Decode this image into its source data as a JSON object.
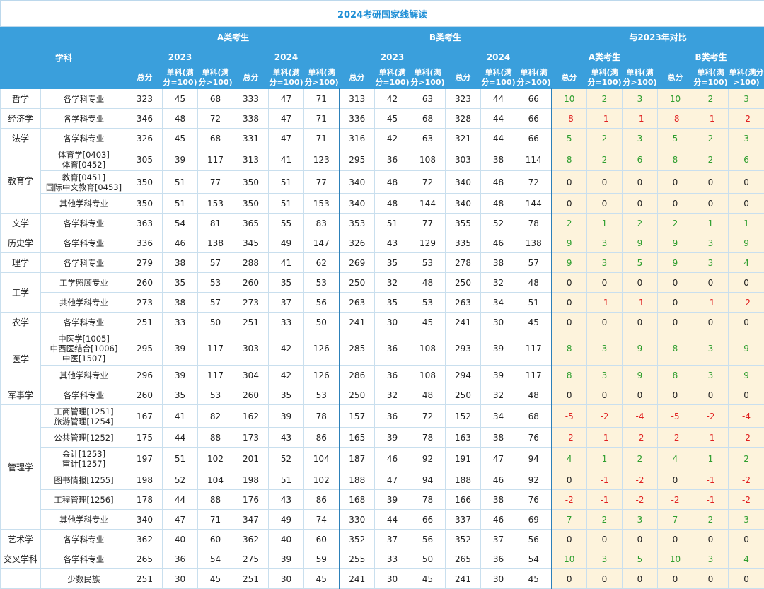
{
  "title": "2024考研国家线解读",
  "header": {
    "subject": "学科",
    "groupA": "A类考生",
    "groupB": "B类考生",
    "compare": "与2023年对比",
    "y2023": "2023",
    "y2024": "2024",
    "cmpA": "A类考生",
    "cmpB": "B类考生",
    "total": "总分",
    "s100": "单科(满分=100)",
    "sgt100": "单科(满分>100)"
  },
  "rows": [
    {
      "subject": "哲学",
      "span": 1,
      "major": "各学科专业",
      "v": [
        "323",
        "45",
        "68",
        "333",
        "47",
        "71",
        "313",
        "42",
        "63",
        "323",
        "44",
        "66"
      ],
      "c": [
        "10",
        "2",
        "3",
        "10",
        "2",
        "3"
      ]
    },
    {
      "subject": "经济学",
      "span": 1,
      "major": "各学科专业",
      "v": [
        "346",
        "48",
        "72",
        "338",
        "47",
        "71",
        "336",
        "45",
        "68",
        "328",
        "44",
        "66"
      ],
      "c": [
        "-8",
        "-1",
        "-1",
        "-8",
        "-1",
        "-2"
      ]
    },
    {
      "subject": "法学",
      "span": 1,
      "major": "各学科专业",
      "v": [
        "326",
        "45",
        "68",
        "331",
        "47",
        "71",
        "316",
        "42",
        "63",
        "321",
        "44",
        "66"
      ],
      "c": [
        "5",
        "2",
        "3",
        "5",
        "2",
        "3"
      ]
    },
    {
      "subject": "教育学",
      "span": 3,
      "major": "体育学[0403]\n体育[0452]",
      "v": [
        "305",
        "39",
        "117",
        "313",
        "41",
        "123",
        "295",
        "36",
        "108",
        "303",
        "38",
        "114"
      ],
      "c": [
        "8",
        "2",
        "6",
        "8",
        "2",
        "6"
      ]
    },
    {
      "major": "教育[0451]\n国际中文教育[0453]",
      "v": [
        "350",
        "51",
        "77",
        "350",
        "51",
        "77",
        "340",
        "48",
        "72",
        "340",
        "48",
        "72"
      ],
      "c": [
        "0",
        "0",
        "0",
        "0",
        "0",
        "0"
      ]
    },
    {
      "major": "其他学科专业",
      "v": [
        "350",
        "51",
        "153",
        "350",
        "51",
        "153",
        "340",
        "48",
        "144",
        "340",
        "48",
        "144"
      ],
      "c": [
        "0",
        "0",
        "0",
        "0",
        "0",
        "0"
      ]
    },
    {
      "subject": "文学",
      "span": 1,
      "major": "各学科专业",
      "v": [
        "363",
        "54",
        "81",
        "365",
        "55",
        "83",
        "353",
        "51",
        "77",
        "355",
        "52",
        "78"
      ],
      "c": [
        "2",
        "1",
        "2",
        "2",
        "1",
        "1"
      ]
    },
    {
      "subject": "历史学",
      "span": 1,
      "major": "各学科专业",
      "v": [
        "336",
        "46",
        "138",
        "345",
        "49",
        "147",
        "326",
        "43",
        "129",
        "335",
        "46",
        "138"
      ],
      "c": [
        "9",
        "3",
        "9",
        "9",
        "3",
        "9"
      ]
    },
    {
      "subject": "理学",
      "span": 1,
      "major": "各学科专业",
      "v": [
        "279",
        "38",
        "57",
        "288",
        "41",
        "62",
        "269",
        "35",
        "53",
        "278",
        "38",
        "57"
      ],
      "c": [
        "9",
        "3",
        "5",
        "9",
        "3",
        "4"
      ]
    },
    {
      "subject": "工学",
      "span": 2,
      "major": "工学照顾专业",
      "v": [
        "260",
        "35",
        "53",
        "260",
        "35",
        "53",
        "250",
        "32",
        "48",
        "250",
        "32",
        "48"
      ],
      "c": [
        "0",
        "0",
        "0",
        "0",
        "0",
        "0"
      ]
    },
    {
      "major": "共他学科专业",
      "v": [
        "273",
        "38",
        "57",
        "273",
        "37",
        "56",
        "263",
        "35",
        "53",
        "263",
        "34",
        "51"
      ],
      "c": [
        "0",
        "-1",
        "-1",
        "0",
        "-1",
        "-2"
      ]
    },
    {
      "subject": "农学",
      "span": 1,
      "major": "各学科专业",
      "v": [
        "251",
        "33",
        "50",
        "251",
        "33",
        "50",
        "241",
        "30",
        "45",
        "241",
        "30",
        "45"
      ],
      "c": [
        "0",
        "0",
        "0",
        "0",
        "0",
        "0"
      ]
    },
    {
      "subject": "医学",
      "span": 2,
      "major": "中医学[1005]\n中西医结合[1006]\n中医[1507]",
      "v": [
        "295",
        "39",
        "117",
        "303",
        "42",
        "126",
        "285",
        "36",
        "108",
        "293",
        "39",
        "117"
      ],
      "c": [
        "8",
        "3",
        "9",
        "8",
        "3",
        "9"
      ]
    },
    {
      "major": "其他学科专业",
      "v": [
        "296",
        "39",
        "117",
        "304",
        "42",
        "126",
        "286",
        "36",
        "108",
        "294",
        "39",
        "117"
      ],
      "c": [
        "8",
        "3",
        "9",
        "8",
        "3",
        "9"
      ]
    },
    {
      "subject": "军事学",
      "span": 1,
      "major": "各学科专业",
      "v": [
        "260",
        "35",
        "53",
        "260",
        "35",
        "53",
        "250",
        "32",
        "48",
        "250",
        "32",
        "48"
      ],
      "c": [
        "0",
        "0",
        "0",
        "0",
        "0",
        "0"
      ]
    },
    {
      "subject": "管理学",
      "span": 6,
      "major": "工商管理[1251]\n旅游管理[1254]",
      "v": [
        "167",
        "41",
        "82",
        "162",
        "39",
        "78",
        "157",
        "36",
        "72",
        "152",
        "34",
        "68"
      ],
      "c": [
        "-5",
        "-2",
        "-4",
        "-5",
        "-2",
        "-4"
      ]
    },
    {
      "major": "公共管理[1252]",
      "v": [
        "175",
        "44",
        "88",
        "173",
        "43",
        "86",
        "165",
        "39",
        "78",
        "163",
        "38",
        "76"
      ],
      "c": [
        "-2",
        "-1",
        "-2",
        "-2",
        "-1",
        "-2"
      ]
    },
    {
      "major": "会计[1253]\n审计[1257]",
      "v": [
        "197",
        "51",
        "102",
        "201",
        "52",
        "104",
        "187",
        "46",
        "92",
        "191",
        "47",
        "94"
      ],
      "c": [
        "4",
        "1",
        "2",
        "4",
        "1",
        "2"
      ]
    },
    {
      "major": "图书情报[1255]",
      "v": [
        "198",
        "52",
        "104",
        "198",
        "51",
        "102",
        "188",
        "47",
        "94",
        "188",
        "46",
        "92"
      ],
      "c": [
        "0",
        "-1",
        "-2",
        "0",
        "-1",
        "-2"
      ]
    },
    {
      "major": "工程管理[1256]",
      "v": [
        "178",
        "44",
        "88",
        "176",
        "43",
        "86",
        "168",
        "39",
        "78",
        "166",
        "38",
        "76"
      ],
      "c": [
        "-2",
        "-1",
        "-2",
        "-2",
        "-1",
        "-2"
      ]
    },
    {
      "major": "其他学科专业",
      "v": [
        "340",
        "47",
        "71",
        "347",
        "49",
        "74",
        "330",
        "44",
        "66",
        "337",
        "46",
        "69"
      ],
      "c": [
        "7",
        "2",
        "3",
        "7",
        "2",
        "3"
      ]
    },
    {
      "subject": "艺术学",
      "span": 1,
      "major": "各学科专业",
      "v": [
        "362",
        "40",
        "60",
        "362",
        "40",
        "60",
        "352",
        "37",
        "56",
        "352",
        "37",
        "56"
      ],
      "c": [
        "0",
        "0",
        "0",
        "0",
        "0",
        "0"
      ]
    },
    {
      "subject": "交叉学科",
      "span": 1,
      "major": "各学科专业",
      "v": [
        "265",
        "36",
        "54",
        "275",
        "39",
        "59",
        "255",
        "33",
        "50",
        "265",
        "36",
        "54"
      ],
      "c": [
        "10",
        "3",
        "5",
        "10",
        "3",
        "4"
      ]
    },
    {
      "subject": "",
      "span": 1,
      "major": "少数民族",
      "v": [
        "251",
        "30",
        "45",
        "251",
        "30",
        "45",
        "241",
        "30",
        "45",
        "241",
        "30",
        "45"
      ],
      "c": [
        "0",
        "0",
        "0",
        "0",
        "0",
        "0"
      ]
    }
  ]
}
